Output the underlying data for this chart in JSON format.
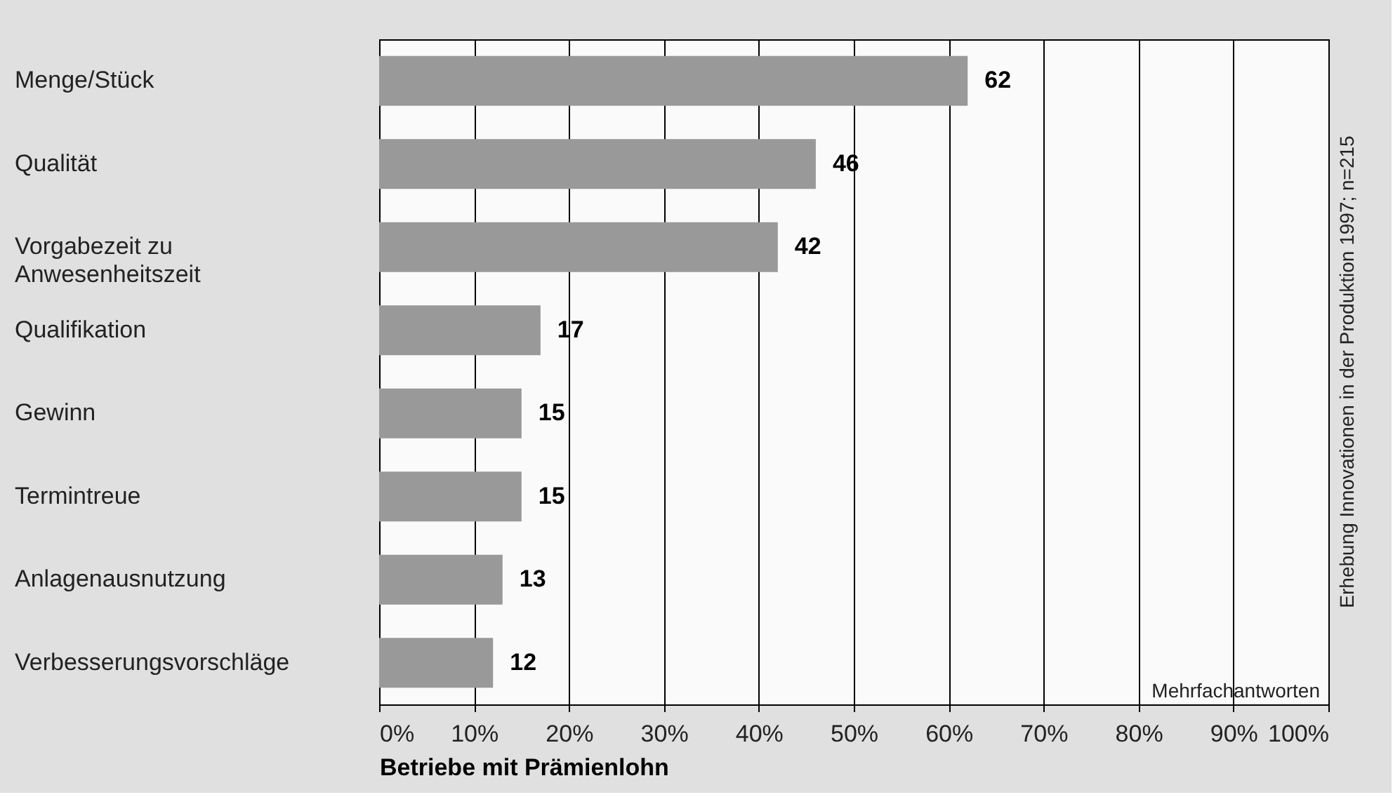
{
  "chart_data": {
    "type": "bar",
    "orientation": "horizontal",
    "xlabel": "Betriebe mit Prämienlohn",
    "categories": [
      "Menge/Stück",
      "Qualität",
      "Vorgabezeit zu\nAnwesenheitszeit",
      "Qualifikation",
      "Gewinn",
      "Termintreue",
      "Anlagenausnutzung",
      "Verbesserungsvorschläge"
    ],
    "values": [
      62,
      46,
      42,
      17,
      15,
      15,
      13,
      12
    ],
    "color": "#999999",
    "data_labels": true,
    "xlim": [
      0,
      100
    ],
    "xticks": [
      {
        "value": 0,
        "label": "0%"
      },
      {
        "value": 10,
        "label": "10%"
      },
      {
        "value": 20,
        "label": "20%"
      },
      {
        "value": 30,
        "label": "30%"
      },
      {
        "value": 40,
        "label": "40%"
      },
      {
        "value": 50,
        "label": "50%"
      },
      {
        "value": 60,
        "label": "60%"
      },
      {
        "value": 70,
        "label": "70%"
      },
      {
        "value": 80,
        "label": "80%"
      },
      {
        "value": 90,
        "label": "90%"
      },
      {
        "value": 100,
        "label": "100%"
      }
    ],
    "grid": "x",
    "annotations": [
      "Mehrfachantworten",
      "Erhebung Innovationen in der Produktion 1997; n=215"
    ]
  }
}
